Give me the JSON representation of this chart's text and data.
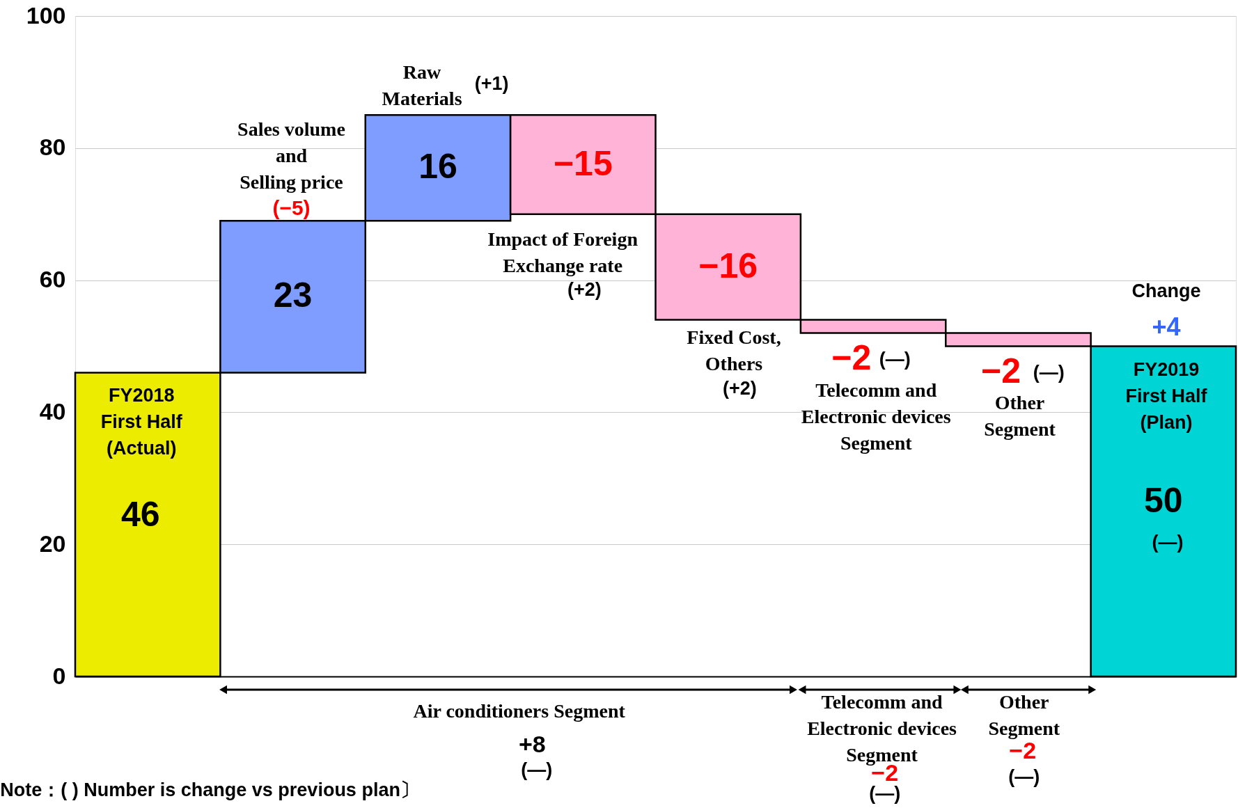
{
  "chart_data": {
    "type": "bar",
    "categories": [
      null,
      null,
      null,
      null,
      null,
      null,
      null,
      null
    ],
    "values": [
      46,
      23,
      16,
      -15,
      -16,
      -2,
      -2,
      50
    ],
    "base": [
      0,
      46,
      69,
      85,
      70,
      54,
      52,
      0
    ],
    "colors": [
      "#ecec00",
      "#7f9cff",
      "#7f9cff",
      "#ffb3d6",
      "#ffb3d6",
      "#ffb3d6",
      "#ffb3d6",
      "#00d4d4"
    ],
    "value_labels": [
      "46",
      "23",
      "16",
      "−15",
      "−16",
      "−2",
      "−2",
      "50"
    ],
    "ylim": [
      0,
      100
    ],
    "yticks": [
      0,
      20,
      40,
      60,
      80,
      100
    ],
    "grid": "y",
    "annotations": [
      "FY2018\nFirst Half\n(Actual)",
      "Sales volume\nand\nSelling price",
      "(−5)",
      "Raw\nMaterials",
      "(+1)",
      "Impact of  Foreign\nExchange rate",
      "(+2)",
      "Fixed Cost,\nOthers",
      "(+2)",
      "(—)",
      "Telecomm and\nElectronic devices\nSegment",
      "(—)",
      "Other\nSegment",
      "Change",
      "+4",
      "FY2019\nFirst Half\n(Plan)",
      "(—)",
      "Air conditioners Segment",
      "+8",
      "(—)",
      "Telecomm and\nElectronic devices\nSegment",
      "−2",
      "(—)",
      "Other\nSegment",
      "−2",
      "(—)",
      "Note：(  ) Number is change vs previous plan〕"
    ]
  }
}
